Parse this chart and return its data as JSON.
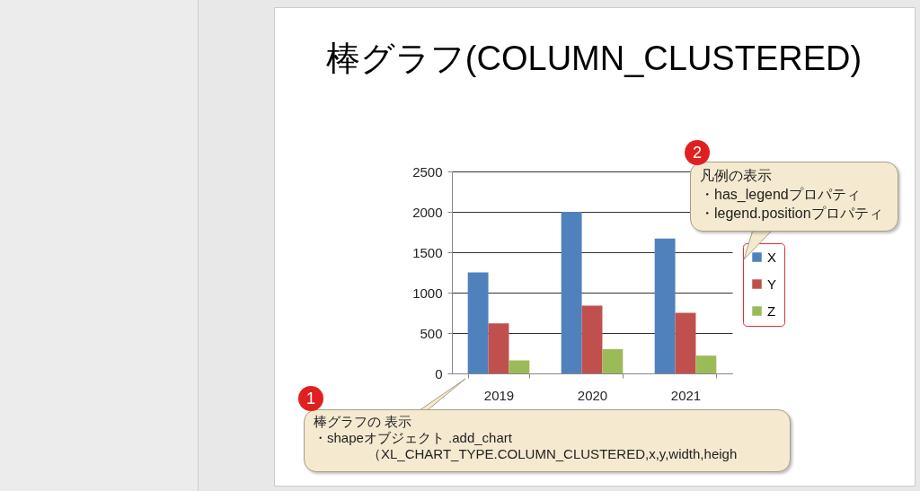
{
  "chart_data": {
    "type": "bar",
    "title": "棒グラフ(COLUMN_CLUSTERED)",
    "categories": [
      "2019",
      "2020",
      "2021"
    ],
    "series": [
      {
        "name": "X",
        "color": "#4f81bd",
        "values": [
          1250,
          2000,
          1670
        ]
      },
      {
        "name": "Y",
        "color": "#c0504d",
        "values": [
          620,
          840,
          750
        ]
      },
      {
        "name": "Z",
        "color": "#9bbb59",
        "values": [
          160,
          300,
          220
        ]
      }
    ],
    "ylim": [
      0,
      2500
    ],
    "yticks": [
      0,
      500,
      1000,
      1500,
      2000,
      2500
    ],
    "grid": "y",
    "legend": "right",
    "annotations": [
      "1",
      "棒グラフの 表示",
      "・shapeオブジェクト .add_chart",
      "（XL_CHART_TYPE.COLUMN_CLUSTERED,x,y,width,heigh",
      "2",
      "凡例の表示",
      "・has_legendプロパティ",
      "・legend.positionプロパティ"
    ]
  }
}
